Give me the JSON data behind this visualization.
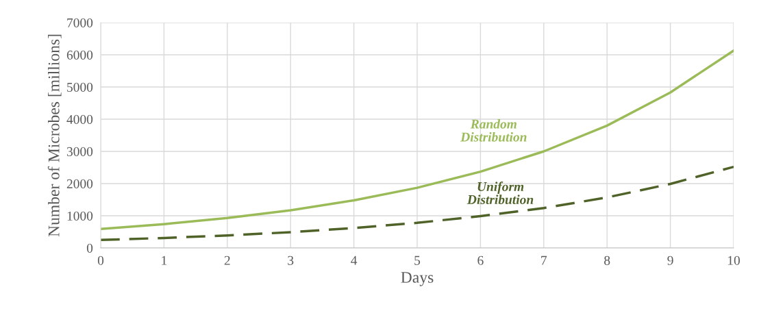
{
  "chart_data": {
    "type": "line",
    "xlabel": "Days",
    "ylabel": "Number of Microbes [millions]",
    "x": [
      0,
      1,
      2,
      3,
      4,
      5,
      6,
      7,
      8,
      9,
      10
    ],
    "series": [
      {
        "name": "Random Distribution",
        "color": "#9bbb59",
        "line_style": "solid",
        "values": [
          590,
          740,
          930,
          1170,
          1480,
          1870,
          2370,
          3000,
          3800,
          4830,
          6130
        ]
      },
      {
        "name": "Uniform Distribution",
        "color": "#4f6228",
        "line_style": "dashed",
        "values": [
          250,
          310,
          390,
          490,
          620,
          780,
          990,
          1240,
          1570,
          1990,
          2520
        ]
      }
    ],
    "xlim": [
      0,
      10
    ],
    "xticks": [
      0,
      1,
      2,
      3,
      4,
      5,
      6,
      7,
      8,
      9,
      10
    ],
    "ylim": [
      0,
      7000
    ],
    "yticks": [
      0,
      1000,
      2000,
      3000,
      4000,
      5000,
      6000,
      7000
    ],
    "grid": true,
    "legend": false,
    "marker": "none"
  }
}
